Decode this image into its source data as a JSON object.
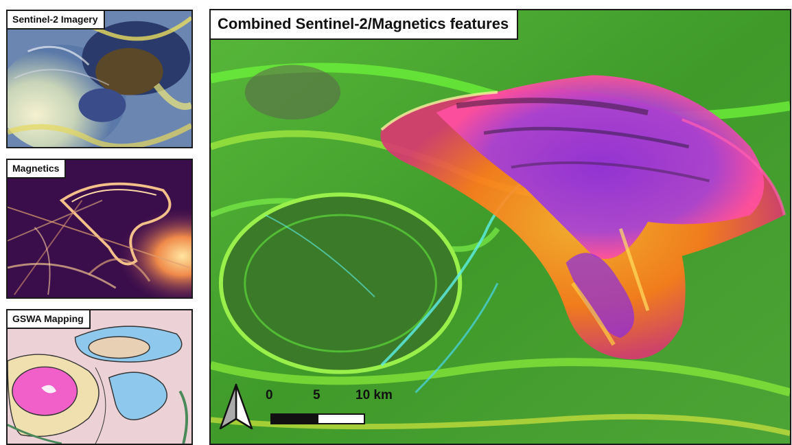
{
  "panels": {
    "sentinel": {
      "label": "Sentinel-2 Imagery"
    },
    "magnetics": {
      "label": "Magnetics"
    },
    "gswa": {
      "label": "GSWA Mapping"
    },
    "combined": {
      "label": "Combined Sentinel-2/Magnetics features"
    }
  },
  "scale": {
    "tick0": "0",
    "tick1": "5",
    "tick2": "10 km"
  },
  "icons": {
    "north": "north-arrow-icon"
  },
  "colors": {
    "combined_base": "#3f9a2a",
    "bright_green": "#6cf03a",
    "purple": "#8a2be2",
    "orange": "#ff7a1a",
    "magnetics_dark": "#2a0a3a",
    "gswa_pink": "#f060c8",
    "gswa_blue": "#8ec8ec"
  }
}
